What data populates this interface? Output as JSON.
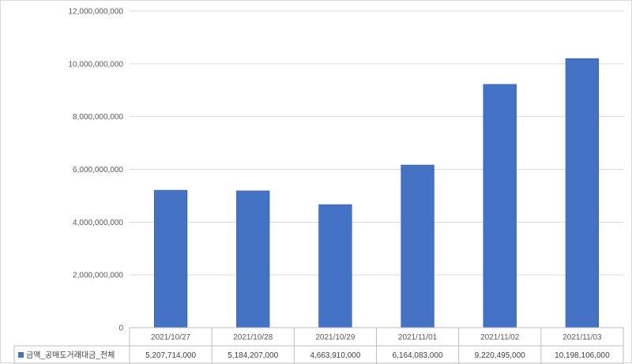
{
  "chart_data": {
    "type": "bar",
    "categories": [
      "2021/10/27",
      "2021/10/28",
      "2021/10/29",
      "2021/11/01",
      "2021/11/02",
      "2021/11/03"
    ],
    "series": [
      {
        "name": "금액_공매도거래대금_전체",
        "values": [
          5207714000,
          5184207000,
          4663910000,
          6164083000,
          9220495000,
          10198106000
        ],
        "value_labels": [
          "5,207,714,000",
          "5,184,207,000",
          "4,663,910,000",
          "6,164,083,000",
          "9,220,495,000",
          "10,198,106,000"
        ],
        "color": "#4472c4"
      }
    ],
    "ylim": [
      0,
      12000000000
    ],
    "yticks": [
      0,
      2000000000,
      4000000000,
      6000000000,
      8000000000,
      10000000000,
      12000000000
    ],
    "ytick_labels": [
      "0",
      "2,000,000,000",
      "4,000,000,000",
      "6,000,000,000",
      "8,000,000,000",
      "10,000,000,000",
      "12,000,000,000"
    ],
    "grid": true,
    "legend": "data-table-left",
    "data_table": true
  }
}
